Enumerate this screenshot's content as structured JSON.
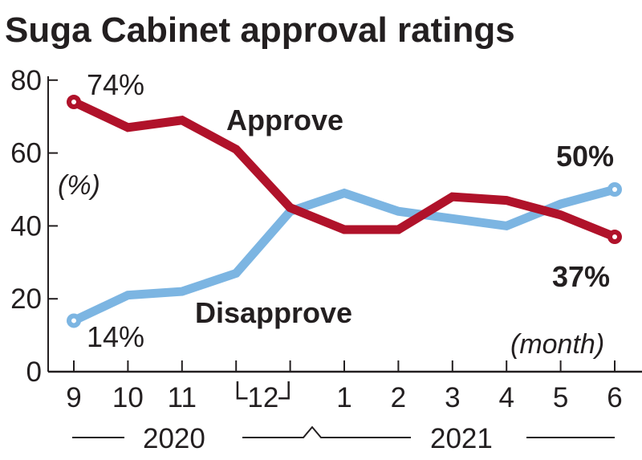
{
  "chart_data": {
    "type": "line",
    "title": "Suga Cabinet approval ratings",
    "ylabel": "(%)",
    "xlabel": "(month)",
    "ylim": [
      0,
      80
    ],
    "yticks": [
      "0",
      "20",
      "40",
      "60",
      "80"
    ],
    "x": [
      "9",
      "10",
      "11",
      "12 (early)",
      "12 (late)",
      "1",
      "2",
      "3",
      "4",
      "5",
      "6"
    ],
    "xtick_labels": [
      "9",
      "10",
      "11",
      "└12┘",
      "1",
      "2",
      "3",
      "4",
      "5",
      "6"
    ],
    "year_labels": [
      "2020",
      "2021"
    ],
    "grid": false,
    "series": [
      {
        "name": "Approve",
        "color": "#b0122a",
        "values": [
          74,
          67,
          69,
          61,
          45,
          39,
          39,
          48,
          47,
          43,
          37
        ]
      },
      {
        "name": "Disapprove",
        "color": "#7cb5e2",
        "values": [
          14,
          21,
          22,
          27,
          44,
          49,
          44,
          42,
          40,
          46,
          50
        ]
      }
    ],
    "annotations": {
      "approve_start": "74%",
      "approve_end": "37%",
      "disapprove_start": "14%",
      "disapprove_end": "50%"
    }
  }
}
